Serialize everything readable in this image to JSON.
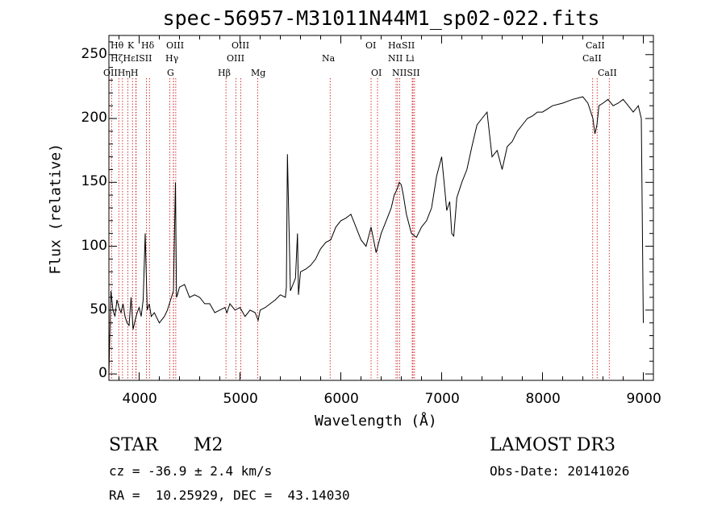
{
  "chart_data": {
    "type": "line",
    "title": "spec-56957-M31011N44M1_sp02-022.fits",
    "xlabel": "Wavelength (Å)",
    "ylabel": "Flux (relative)",
    "xlim": [
      3700,
      9100
    ],
    "ylim": [
      -5,
      265
    ],
    "xticks": [
      4000,
      5000,
      6000,
      7000,
      8000,
      9000
    ],
    "yticks": [
      0,
      50,
      100,
      150,
      200,
      250
    ],
    "series": [
      {
        "name": "spectrum",
        "x": [
          3700,
          3720,
          3740,
          3760,
          3780,
          3800,
          3820,
          3840,
          3860,
          3880,
          3900,
          3920,
          3940,
          3960,
          3980,
          4000,
          4020,
          4040,
          4060,
          4080,
          4100,
          4120,
          4150,
          4200,
          4250,
          4280,
          4300,
          4320,
          4340,
          4360,
          4370,
          4380,
          4400,
          4450,
          4500,
          4550,
          4600,
          4650,
          4700,
          4750,
          4800,
          4850,
          4870,
          4900,
          4950,
          5000,
          5050,
          5100,
          5150,
          5180,
          5200,
          5250,
          5300,
          5350,
          5400,
          5450,
          5460,
          5470,
          5500,
          5550,
          5570,
          5580,
          5600,
          5650,
          5700,
          5750,
          5780,
          5800,
          5850,
          5900,
          5950,
          6000,
          6050,
          6100,
          6150,
          6200,
          6250,
          6300,
          6350,
          6400,
          6450,
          6500,
          6530,
          6560,
          6580,
          6600,
          6620,
          6650,
          6700,
          6750,
          6800,
          6850,
          6900,
          6950,
          7000,
          7030,
          7050,
          7080,
          7100,
          7120,
          7150,
          7200,
          7250,
          7300,
          7350,
          7400,
          7450,
          7500,
          7550,
          7600,
          7650,
          7700,
          7750,
          7800,
          7850,
          7900,
          7950,
          8000,
          8100,
          8200,
          8300,
          8400,
          8450,
          8500,
          8520,
          8540,
          8560,
          8600,
          8650,
          8700,
          8750,
          8800,
          8850,
          8900,
          8950,
          8980,
          9000
        ],
        "values": [
          0,
          65,
          50,
          45,
          58,
          52,
          48,
          55,
          45,
          40,
          38,
          60,
          35,
          42,
          48,
          52,
          45,
          58,
          110,
          50,
          55,
          45,
          48,
          40,
          45,
          50,
          55,
          60,
          65,
          150,
          60,
          62,
          68,
          70,
          60,
          62,
          60,
          55,
          55,
          48,
          50,
          52,
          48,
          55,
          50,
          52,
          45,
          50,
          48,
          42,
          50,
          52,
          55,
          58,
          62,
          60,
          68,
          172,
          65,
          75,
          110,
          62,
          80,
          82,
          85,
          90,
          95,
          98,
          103,
          105,
          115,
          120,
          122,
          125,
          115,
          105,
          100,
          115,
          95,
          110,
          120,
          130,
          140,
          145,
          150,
          148,
          140,
          125,
          110,
          107,
          115,
          120,
          130,
          155,
          170,
          145,
          128,
          135,
          110,
          108,
          138,
          150,
          160,
          178,
          195,
          200,
          205,
          170,
          175,
          160,
          178,
          182,
          190,
          195,
          200,
          202,
          205,
          205,
          210,
          212,
          215,
          217,
          212,
          200,
          188,
          195,
          210,
          212,
          215,
          210,
          212,
          215,
          210,
          205,
          210,
          200,
          40
        ]
      }
    ],
    "lines": [
      {
        "name": "OII",
        "x": 3727,
        "row": 3
      },
      {
        "name": "Hθ",
        "x": 3798,
        "row": 1
      },
      {
        "name": "Hη",
        "x": 3835,
        "row": 3
      },
      {
        "name": "Hζ",
        "x": 3889,
        "row": 2
      },
      {
        "name": "K",
        "x": 3934,
        "row": 1
      },
      {
        "name": "H",
        "x": 3968,
        "row": 3
      },
      {
        "name": "Hε",
        "x": 3970,
        "row": 2
      },
      {
        "name": "SII",
        "x": 4072,
        "row": 2
      },
      {
        "name": "Hδ",
        "x": 4102,
        "row": 1
      },
      {
        "name": "G",
        "x": 4305,
        "row": 3
      },
      {
        "name": "OIII",
        "x": 4341,
        "row": 1
      },
      {
        "name": "Hγ",
        "x": 4340,
        "row": 2
      },
      {
        "name": "OIII",
        "x": 4363,
        "row": 0
      },
      {
        "name": "Hβ",
        "x": 4861,
        "row": 3
      },
      {
        "name": "OIII",
        "x": 4959,
        "row": 2
      },
      {
        "name": "OIII",
        "x": 5007,
        "row": 1
      },
      {
        "name": "Mg",
        "x": 5175,
        "row": 3
      },
      {
        "name": "Na",
        "x": 5894,
        "row": 2
      },
      {
        "name": "OI",
        "x": 6300,
        "row": 1
      },
      {
        "name": "OI",
        "x": 6364,
        "row": 3
      },
      {
        "name": "NII",
        "x": 6548,
        "row": 2
      },
      {
        "name": "Hα",
        "x": 6563,
        "row": 1
      },
      {
        "name": "NII",
        "x": 6583,
        "row": 3
      },
      {
        "name": "Li",
        "x": 6708,
        "row": 2
      },
      {
        "name": "SII",
        "x": 6716,
        "row": 1
      },
      {
        "name": "SII",
        "x": 6731,
        "row": 3
      },
      {
        "name": "CaII",
        "x": 8498,
        "row": 2
      },
      {
        "name": "CaII",
        "x": 8542,
        "row": 1
      },
      {
        "name": "CaII",
        "x": 8662,
        "row": 3
      }
    ],
    "line_labels": [
      {
        "text": "Hθ",
        "row": 0
      },
      {
        "text": "K",
        "row": 0
      },
      {
        "text": "Hδ",
        "row": 0
      },
      {
        "text": "OIII",
        "row": 0
      },
      {
        "text": "OIII",
        "row": 0
      },
      {
        "text": "OI",
        "row": 0
      },
      {
        "text": "HαSII",
        "row": 0
      },
      {
        "text": "CaII",
        "row": 0
      },
      {
        "text": "HζHεISII",
        "row": 1
      },
      {
        "text": "Hγ",
        "row": 1
      },
      {
        "text": "OIII",
        "row": 1
      },
      {
        "text": "Na",
        "row": 1
      },
      {
        "text": "NII Li",
        "row": 1
      },
      {
        "text": "CaII",
        "row": 1
      },
      {
        "text": "OIIHηH",
        "row": 2
      },
      {
        "text": "G",
        "row": 2
      },
      {
        "text": "Hβ",
        "row": 2
      },
      {
        "text": "Mg",
        "row": 2
      },
      {
        "text": "OI",
        "row": 2
      },
      {
        "text": "NIISII",
        "row": 2
      },
      {
        "text": "CaII",
        "row": 2
      }
    ],
    "colors": {
      "curve": "#000000",
      "line_markers": "#cc0000"
    }
  },
  "info": {
    "class": "STAR",
    "subclass": "M2",
    "survey": "LAMOST DR3",
    "cz": "cz = -36.9 ± 2.4 km/s",
    "obs_date": "Obs-Date: 20141026",
    "coords": "RA =  10.25929, DEC =  43.14030"
  }
}
